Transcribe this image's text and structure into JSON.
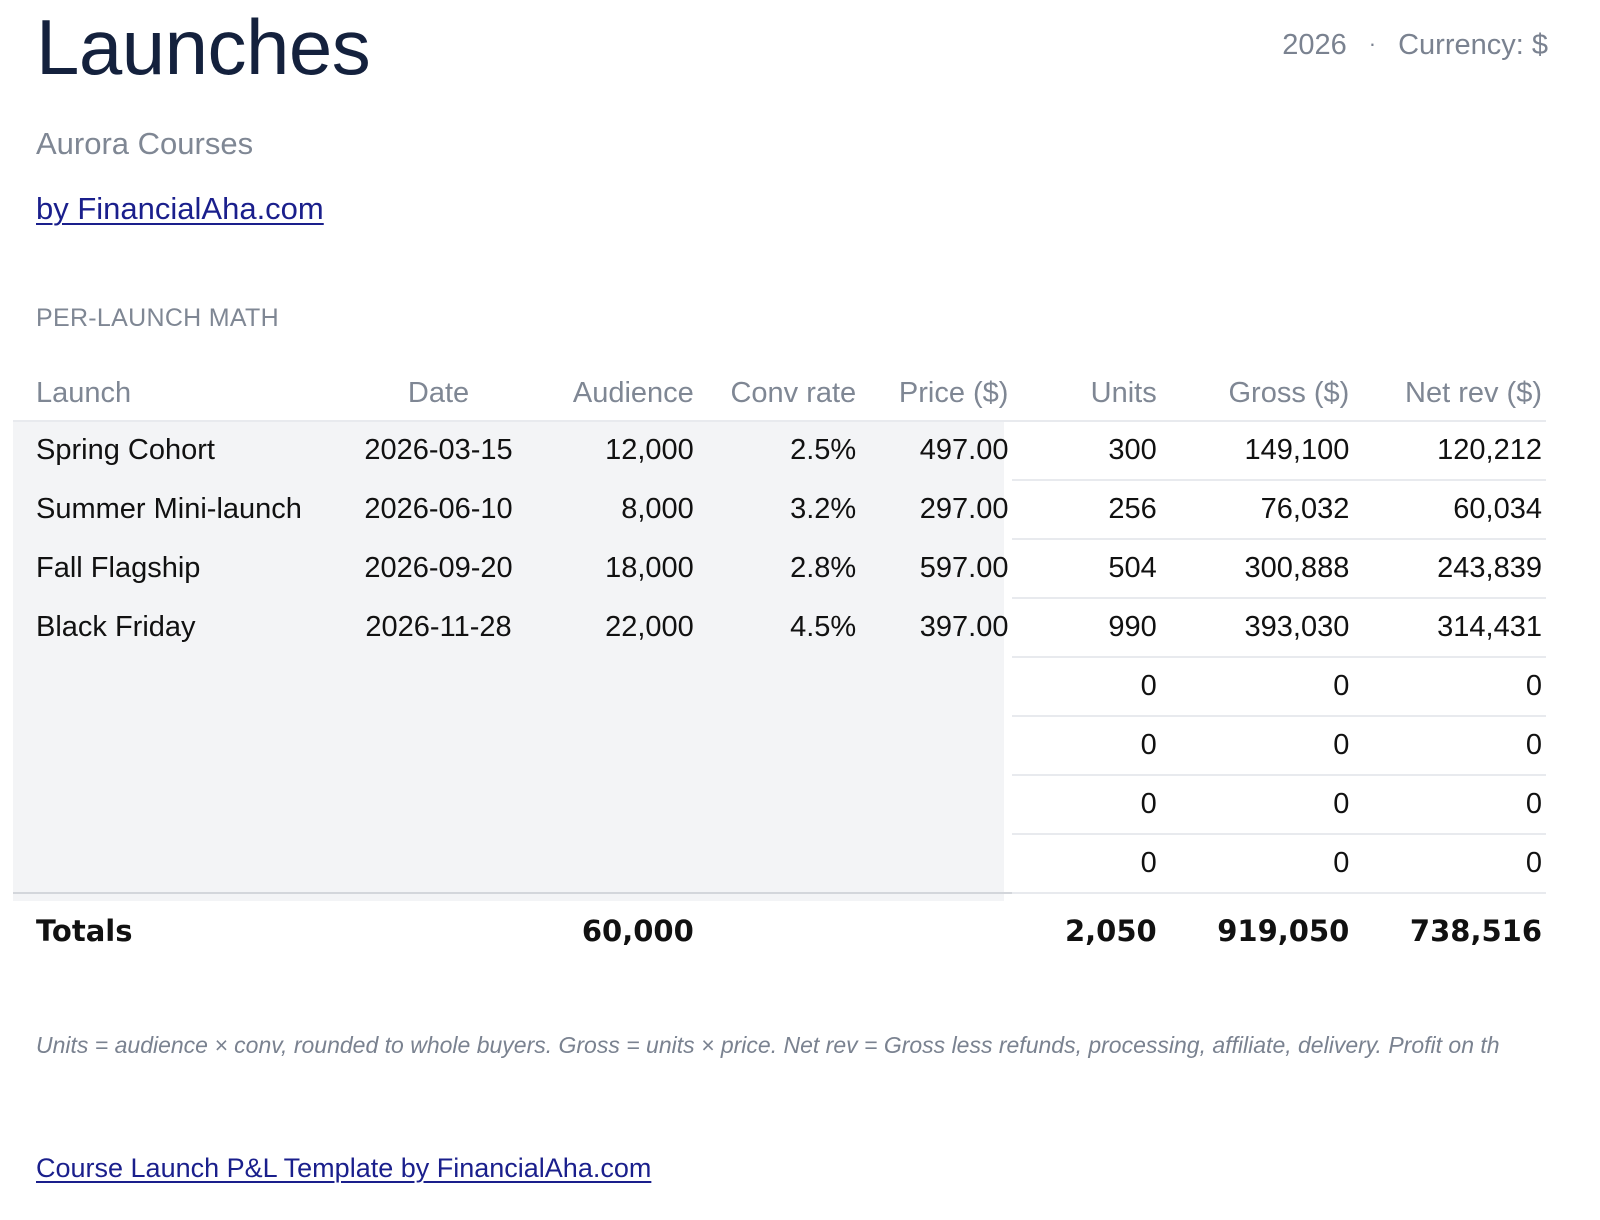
{
  "header": {
    "title": "Launches",
    "year": "2026",
    "separator": "·",
    "currency_label": "Currency: $"
  },
  "subtitle": "Aurora Courses",
  "byline": "by FinancialAha.com",
  "section_label": "PER-LAUNCH MATH",
  "table": {
    "columns": [
      "Launch",
      "Date",
      "Audience",
      "Conv rate",
      "Price ($)",
      "Units",
      "Gross ($)",
      "Net rev ($)"
    ],
    "rows": [
      {
        "launch": "Spring Cohort",
        "date": "2026-03-15",
        "audience": "12,000",
        "conv": "2.5%",
        "price": "497.00",
        "units": "300",
        "gross": "149,100",
        "net": "120,212"
      },
      {
        "launch": "Summer Mini-launch",
        "date": "2026-06-10",
        "audience": "8,000",
        "conv": "3.2%",
        "price": "297.00",
        "units": "256",
        "gross": "76,032",
        "net": "60,034"
      },
      {
        "launch": "Fall Flagship",
        "date": "2026-09-20",
        "audience": "18,000",
        "conv": "2.8%",
        "price": "597.00",
        "units": "504",
        "gross": "300,888",
        "net": "243,839"
      },
      {
        "launch": "Black Friday",
        "date": "2026-11-28",
        "audience": "22,000",
        "conv": "4.5%",
        "price": "397.00",
        "units": "990",
        "gross": "393,030",
        "net": "314,431"
      },
      {
        "launch": "",
        "date": "",
        "audience": "",
        "conv": "",
        "price": "",
        "units": "0",
        "gross": "0",
        "net": "0"
      },
      {
        "launch": "",
        "date": "",
        "audience": "",
        "conv": "",
        "price": "",
        "units": "0",
        "gross": "0",
        "net": "0"
      },
      {
        "launch": "",
        "date": "",
        "audience": "",
        "conv": "",
        "price": "",
        "units": "0",
        "gross": "0",
        "net": "0"
      },
      {
        "launch": "",
        "date": "",
        "audience": "",
        "conv": "",
        "price": "",
        "units": "0",
        "gross": "0",
        "net": "0"
      }
    ],
    "totals": {
      "label": "Totals",
      "audience": "60,000",
      "units": "2,050",
      "gross": "919,050",
      "net": "738,516"
    }
  },
  "footnote": "Units = audience × conv, rounded to whole buyers. Gross = units × price. Net rev = Gross less refunds, processing, affiliate, delivery. Profit on th",
  "footer_link": "Course Launch P&L Template by FinancialAha.com",
  "colors": {
    "title": "#14213d",
    "muted": "#7f8794",
    "link": "#1a1f8c",
    "input_shade": "#f3f4f6"
  }
}
